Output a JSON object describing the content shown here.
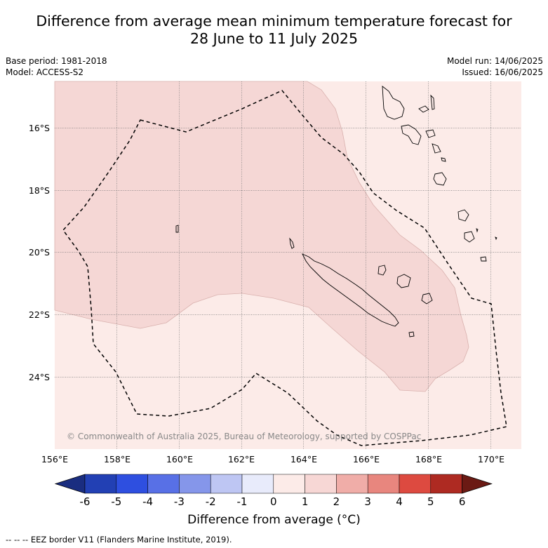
{
  "title_line1": "Difference from average mean minimum temperature forecast for",
  "title_line2": "28 June to 11 July 2025",
  "base_period": "Base period: 1981-2018",
  "model": "Model: ACCESS-S2",
  "model_run": "Model run: 14/06/2025",
  "issued": "Issued: 16/06/2025",
  "copyright": "© Commonwealth of Australia 2025, Bureau of Meteorology, supported by COSPPac",
  "lon_ticks": [
    "156°E",
    "158°E",
    "160°E",
    "162°E",
    "164°E",
    "166°E",
    "168°E",
    "170°E"
  ],
  "lat_ticks": [
    "16°S",
    "18°S",
    "20°S",
    "22°S",
    "24°S"
  ],
  "colorbar": {
    "title": "Difference from average (°C)",
    "tick_labels": [
      "-6",
      "-5",
      "-4",
      "-3",
      "-2",
      "-1",
      "0",
      "1",
      "2",
      "3",
      "4",
      "5",
      "6"
    ],
    "colors": [
      "#1a2d80",
      "#2240b4",
      "#2e4fe0",
      "#5870e6",
      "#8596ea",
      "#bec6f3",
      "#e8ebfb",
      "#fcebe8",
      "#f7d7d5",
      "#f0ada8",
      "#e8867e",
      "#dd4a40",
      "#ae2a22",
      "#6b1a14"
    ]
  },
  "map_data": {
    "category_colors": {
      "0 to 1": "#fcebe8",
      "1 to 2": "#f5d7d5"
    },
    "gridline_color": "#777777",
    "eez_style": "dashed"
  },
  "footnote": "-- -- -- EEZ border V11 (Flanders Marine Institute, 2019)."
}
